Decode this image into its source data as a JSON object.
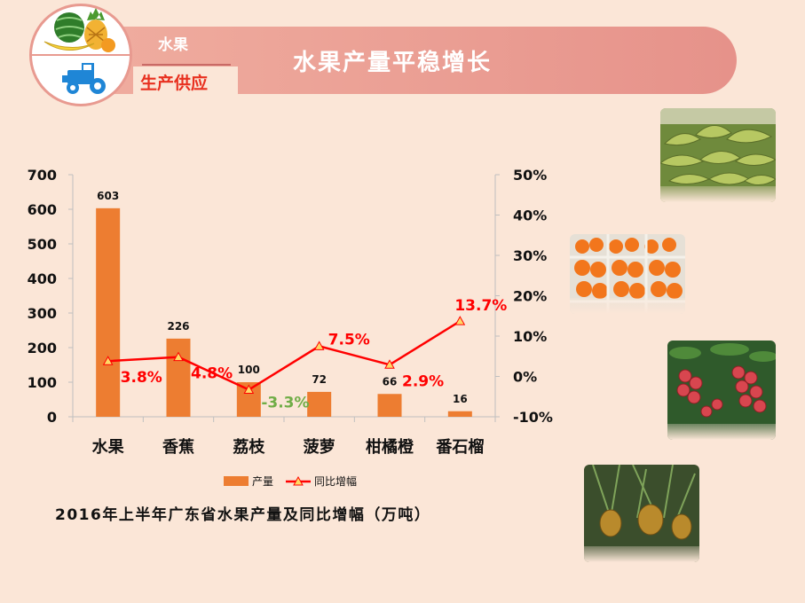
{
  "header": {
    "category": "水果",
    "subcategory": "生产供应",
    "title": "水果产量平稳增长"
  },
  "caption": "2016年上半年广东省水果产量及同比增幅（万吨）",
  "chart_data": {
    "type": "bar",
    "categories": [
      "水果",
      "香蕉",
      "荔枝",
      "菠萝",
      "柑橘橙",
      "番石榴"
    ],
    "series": [
      {
        "name": "产量",
        "type": "bar",
        "axis": "left",
        "values": [
          603,
          226,
          100,
          72,
          66,
          16
        ],
        "labels": [
          "603",
          "226",
          "100",
          "72",
          "66",
          "16"
        ],
        "color": "#ed7d31"
      },
      {
        "name": "同比增幅",
        "type": "line",
        "axis": "right",
        "values": [
          3.8,
          4.8,
          -3.3,
          7.5,
          2.9,
          13.7
        ],
        "labels": [
          "3.8%",
          "4.8%",
          "-3.3%",
          "7.5%",
          "2.9%",
          "13.7%"
        ],
        "color": "#ff0000",
        "negative_label_color": "#70ad47"
      }
    ],
    "y_left": {
      "min": 0,
      "max": 700,
      "step": 100,
      "ticks": [
        "0",
        "100",
        "200",
        "300",
        "400",
        "500",
        "600",
        "700"
      ]
    },
    "y_right": {
      "min": -10,
      "max": 50,
      "step": 10,
      "ticks": [
        "-10%",
        "0%",
        "10%",
        "20%",
        "30%",
        "40%",
        "50%"
      ]
    },
    "legend": {
      "placement": "bottom"
    },
    "grid": false
  },
  "colors": {
    "background": "#fbe6d7",
    "banner": "#e8968c",
    "bar": "#ed7d31",
    "line": "#ff0000",
    "accent_red": "#e8301f"
  },
  "photos": [
    "banana-photo",
    "orange-photo",
    "lychee-photo",
    "pineapple-photo"
  ]
}
